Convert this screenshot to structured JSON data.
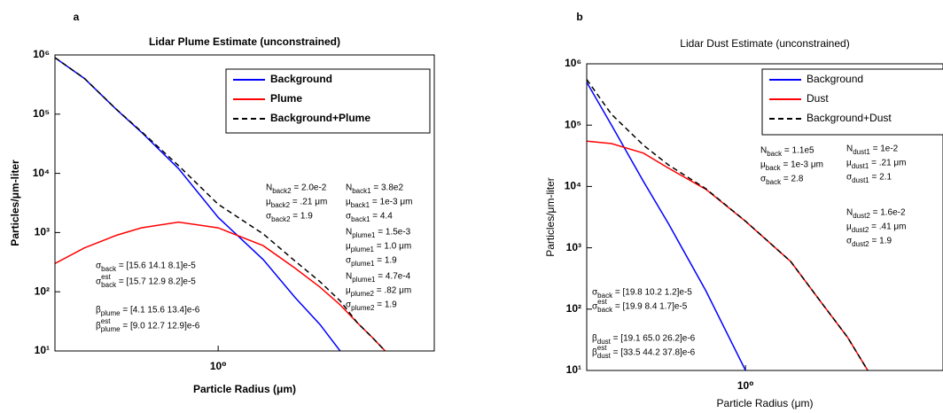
{
  "chart_data": [
    {
      "type": "line",
      "panel_label": "a",
      "title": "Lidar Plume Estimate (unconstrained)",
      "xlabel": "Particle Radius (μm)",
      "ylabel": "Particles/μm-liter",
      "log_x": true,
      "log_y": true,
      "legend": "upper right",
      "xlim": [
        0.23,
        7
      ],
      "ylim": [
        10,
        1000000
      ],
      "xticks": [
        {
          "value": 1,
          "label": "10⁰"
        }
      ],
      "yticks": [
        {
          "value": 10,
          "label": "10¹"
        },
        {
          "value": 100,
          "label": "10²"
        },
        {
          "value": 1000,
          "label": "10³"
        },
        {
          "value": 10000,
          "label": "10⁴"
        },
        {
          "value": 100000,
          "label": "10⁵"
        },
        {
          "value": 1000000,
          "label": "10⁶"
        }
      ],
      "x": [
        0.23,
        0.3,
        0.4,
        0.5,
        0.7,
        1.0,
        1.5,
        2.0,
        2.5,
        3.0,
        3.5,
        4.0,
        4.5
      ],
      "series": [
        {
          "name": "Background",
          "color": "#0000ff",
          "dash": false,
          "values": [
            900000,
            400000,
            120000,
            50000,
            12000,
            1800,
            350,
            80,
            28,
            10,
            null,
            null,
            null
          ]
        },
        {
          "name": "Plume",
          "color": "#ff0000",
          "dash": false,
          "values": [
            300,
            550,
            900,
            1200,
            1500,
            1200,
            600,
            250,
            120,
            60,
            30,
            17,
            10
          ]
        },
        {
          "name": "Background+Plume",
          "color": "#000000",
          "dash": true,
          "values": [
            900300,
            400550,
            120900,
            51200,
            13500,
            3000,
            950,
            330,
            148,
            70,
            30,
            17,
            10
          ]
        }
      ],
      "annotations": [
        {
          "main": "N",
          "sub": "back2",
          "rest": " = 2.0e-2"
        },
        {
          "main": "μ",
          "sub": "back2",
          "rest": " = .21 μm"
        },
        {
          "main": "σ",
          "sub": "back2",
          "rest": " = 1.9"
        },
        {
          "main": "N",
          "sub": "back1",
          "rest": " = 3.8e2"
        },
        {
          "main": "μ",
          "sub": "back1",
          "rest": " = 1e-3 μm"
        },
        {
          "main": "σ",
          "sub": "back1",
          "rest": " = 4.4"
        },
        {
          "main": "N",
          "sub": "plume1",
          "rest": " = 1.5e-3"
        },
        {
          "main": "μ",
          "sub": "plume1",
          "rest": " = 1.0 μm"
        },
        {
          "main": "σ",
          "sub": "plume1",
          "rest": " = 1.9"
        },
        {
          "main": "N",
          "sub": "plume1",
          "rest": " = 4.7e-4"
        },
        {
          "main": "μ",
          "sub": "plume2",
          "rest": " = .82 μm"
        },
        {
          "main": "σ",
          "sub": "plume2",
          "rest": " = 1.9"
        },
        {
          "main": "σ",
          "sub": "back",
          "rest": " = [15.6 14.1 8.1]e-5"
        },
        {
          "main": "σ",
          "sup": "est",
          "sub": "back",
          "rest": " = [15.7 12.9 8.2]e-5"
        },
        {
          "main": "β",
          "sub": "plume",
          "rest": " = [4.1 15.6 13.4]e-6"
        },
        {
          "main": "β",
          "sup": "est",
          "sub": "plume",
          "rest": " = [9.0 12.7 12.9]e-6"
        }
      ]
    },
    {
      "type": "line",
      "panel_label": "b",
      "title": "Lidar Dust Estimate (unconstrained)",
      "xlabel": "Particle Radius (μm)",
      "ylabel": "Particles/μm-liter",
      "log_x": true,
      "log_y": true,
      "legend": "upper right",
      "xlim": [
        0.24,
        5.9
      ],
      "ylim": [
        10,
        1000000
      ],
      "xticks": [
        {
          "value": 1,
          "label": "10⁰"
        }
      ],
      "yticks": [
        {
          "value": 10,
          "label": "10¹"
        },
        {
          "value": 100,
          "label": "10²"
        },
        {
          "value": 1000,
          "label": "10³"
        },
        {
          "value": 10000,
          "label": "10⁴"
        },
        {
          "value": 100000,
          "label": "10⁵"
        },
        {
          "value": 1000000,
          "label": "10⁶"
        }
      ],
      "x": [
        0.24,
        0.3,
        0.4,
        0.5,
        0.7,
        1.0,
        1.5,
        2.0,
        2.5,
        3.0
      ],
      "series": [
        {
          "name": "Background",
          "color": "#0000ff",
          "dash": false,
          "values": [
            500000,
            100000,
            12000,
            2500,
            200,
            10,
            null,
            null,
            null,
            null
          ]
        },
        {
          "name": "Dust",
          "color": "#ff0000",
          "dash": false,
          "values": [
            55000,
            50000,
            35000,
            20000,
            9000,
            2700,
            600,
            120,
            35,
            10
          ]
        },
        {
          "name": "Background+Dust",
          "color": "#000000",
          "dash": true,
          "values": [
            555000,
            150000,
            47000,
            22500,
            9200,
            2710,
            600,
            120,
            35,
            10
          ]
        }
      ],
      "annotations": [
        {
          "main": "N",
          "sub": "back",
          "rest": " = 1.1e5"
        },
        {
          "main": "μ",
          "sub": "back",
          "rest": " = 1e-3 μm"
        },
        {
          "main": "σ",
          "sub": "back",
          "rest": " = 2.8"
        },
        {
          "main": "N",
          "sub": "dust1",
          "rest": " = 1e-2"
        },
        {
          "main": "μ",
          "sub": "dust1",
          "rest": " = .21 μm"
        },
        {
          "main": "σ",
          "sub": "dust1",
          "rest": " = 2.1"
        },
        {
          "main": "N",
          "sub": "dust2",
          "rest": " = 1.6e-2"
        },
        {
          "main": "μ",
          "sub": "dust2",
          "rest": " = .41 μm"
        },
        {
          "main": "σ",
          "sub": "dust2",
          "rest": " = 1.9"
        },
        {
          "main": "σ",
          "sub": "back",
          "rest": " = [19.8 10.2 1.2]e-5"
        },
        {
          "main": "σ",
          "sup": "est",
          "sub": "back",
          "rest": " = [19.9 8.4 1.7]e-5"
        },
        {
          "main": "β",
          "sub": "dust",
          "rest": " = [19.1 65.0 26.2]e-6"
        },
        {
          "main": "β",
          "sup": "est",
          "sub": "dust",
          "rest": " = [33.5 44.2 37.8]e-6"
        }
      ]
    }
  ]
}
